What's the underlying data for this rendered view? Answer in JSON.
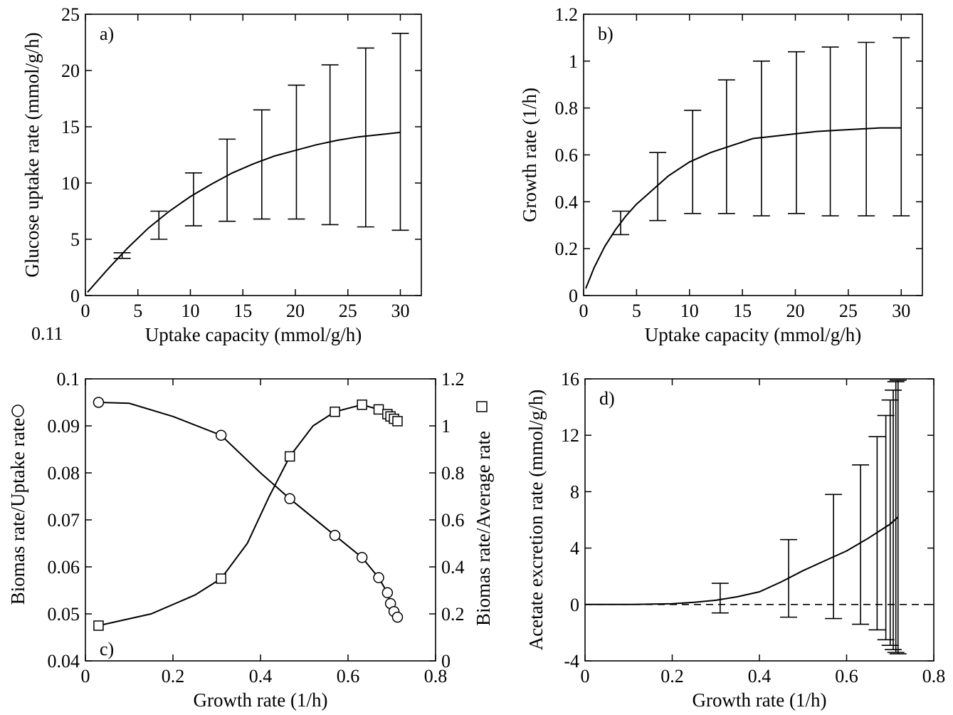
{
  "stray_label": "0.11",
  "chart_data": [
    {
      "id": "a",
      "type": "line",
      "tag": "a)",
      "xlabel": "Uptake capacity (mmol/g/h)",
      "ylabel": "Glucose uptake rate (mmol/g/h)",
      "xlim": [
        0,
        32
      ],
      "ylim": [
        0,
        25
      ],
      "xticks": [
        0,
        5,
        10,
        15,
        20,
        25,
        30
      ],
      "yticks": [
        0,
        5,
        10,
        15,
        20,
        25
      ],
      "xtick_labels": [
        "0",
        "5",
        "10",
        "15",
        "20",
        "25",
        "30"
      ],
      "ytick_labels": [
        "0",
        "5",
        "10",
        "15",
        "20",
        "25"
      ],
      "curve": {
        "x": [
          0.2,
          2,
          4,
          6,
          8,
          10,
          12,
          14,
          16,
          18,
          20,
          22,
          24,
          26,
          28,
          30
        ],
        "y": [
          0.3,
          2.2,
          4.2,
          6.0,
          7.5,
          8.8,
          9.9,
          10.9,
          11.7,
          12.4,
          12.9,
          13.4,
          13.8,
          14.1,
          14.3,
          14.5
        ]
      },
      "errorbars": [
        {
          "x": 3.5,
          "low": 3.3,
          "high": 3.8
        },
        {
          "x": 7,
          "low": 5.0,
          "high": 7.5
        },
        {
          "x": 10.3,
          "low": 6.2,
          "high": 10.9
        },
        {
          "x": 13.5,
          "low": 6.6,
          "high": 13.9
        },
        {
          "x": 16.8,
          "low": 6.8,
          "high": 16.5
        },
        {
          "x": 20.1,
          "low": 6.8,
          "high": 18.7
        },
        {
          "x": 23.3,
          "low": 6.3,
          "high": 20.5
        },
        {
          "x": 26.7,
          "low": 6.1,
          "high": 22.0
        },
        {
          "x": 30,
          "low": 5.8,
          "high": 23.3
        }
      ]
    },
    {
      "id": "b",
      "type": "line",
      "tag": "b)",
      "xlabel": "Uptake capacity (mmol/g/h)",
      "ylabel": "Growth rate (1/h)",
      "xlim": [
        0,
        32
      ],
      "ylim": [
        0,
        1.2
      ],
      "xticks": [
        0,
        5,
        10,
        15,
        20,
        25,
        30
      ],
      "yticks": [
        0,
        0.2,
        0.4,
        0.6,
        0.8,
        1,
        1.2
      ],
      "xtick_labels": [
        "0",
        "5",
        "10",
        "15",
        "20",
        "25",
        "30"
      ],
      "ytick_labels": [
        "0",
        "0.2",
        "0.4",
        "0.6",
        "0.8",
        "1",
        "1.2"
      ],
      "curve": {
        "x": [
          0.2,
          1,
          2,
          3,
          4,
          5,
          6,
          7,
          8,
          10,
          12,
          14,
          16,
          18,
          20,
          22,
          24,
          26,
          28,
          30
        ],
        "y": [
          0.03,
          0.12,
          0.21,
          0.28,
          0.34,
          0.39,
          0.43,
          0.47,
          0.51,
          0.57,
          0.61,
          0.64,
          0.67,
          0.68,
          0.69,
          0.7,
          0.705,
          0.71,
          0.715,
          0.715
        ]
      },
      "errorbars": [
        {
          "x": 3.5,
          "low": 0.26,
          "high": 0.36
        },
        {
          "x": 7,
          "low": 0.32,
          "high": 0.61
        },
        {
          "x": 10.3,
          "low": 0.35,
          "high": 0.79
        },
        {
          "x": 13.5,
          "low": 0.35,
          "high": 0.92
        },
        {
          "x": 16.8,
          "low": 0.34,
          "high": 1.0
        },
        {
          "x": 20.1,
          "low": 0.35,
          "high": 1.04
        },
        {
          "x": 23.3,
          "low": 0.34,
          "high": 1.06
        },
        {
          "x": 26.7,
          "low": 0.34,
          "high": 1.08
        },
        {
          "x": 30,
          "low": 0.34,
          "high": 1.1
        }
      ]
    },
    {
      "id": "c",
      "type": "line",
      "tag": "c)",
      "xlabel": "Growth rate (1/h)",
      "ylabel": "Biomas rate/Uptake rate",
      "ylabel_marker": "circle",
      "y2label": "Biomas rate/Average rate",
      "y2label_marker": "square",
      "xlim": [
        0,
        0.8
      ],
      "ylim": [
        0.04,
        0.1
      ],
      "y2lim": [
        0,
        1.2
      ],
      "xticks": [
        0,
        0.2,
        0.4,
        0.6,
        0.8
      ],
      "yticks": [
        0.04,
        0.05,
        0.06,
        0.07,
        0.08,
        0.09,
        0.1
      ],
      "y2ticks": [
        0,
        0.2,
        0.4,
        0.6,
        0.8,
        1,
        1.2
      ],
      "xtick_labels": [
        "0",
        "0.2",
        "0.4",
        "0.6",
        "0.8"
      ],
      "ytick_labels": [
        "0.04",
        "0.05",
        "0.06",
        "0.07",
        "0.08",
        "0.09",
        "0.1"
      ],
      "y2tick_labels": [
        "0",
        "0.2",
        "0.4",
        "0.6",
        "0.8",
        "1",
        "1.2"
      ],
      "series": [
        {
          "marker": "circle",
          "axis": "left",
          "x": [
            0.03,
            0.1,
            0.2,
            0.31,
            0.4,
            0.467,
            0.57,
            0.632,
            0.67,
            0.69,
            0.697,
            0.705,
            0.713
          ],
          "y": [
            0.095,
            0.0948,
            0.092,
            0.088,
            0.08,
            0.0745,
            0.0667,
            0.062,
            0.0577,
            0.0545,
            0.0522,
            0.0505,
            0.0493
          ],
          "points": [
            {
              "x": 0.03,
              "y": 0.095
            },
            {
              "x": 0.31,
              "y": 0.088
            },
            {
              "x": 0.467,
              "y": 0.0745
            },
            {
              "x": 0.57,
              "y": 0.0667
            },
            {
              "x": 0.632,
              "y": 0.062
            },
            {
              "x": 0.67,
              "y": 0.0577
            },
            {
              "x": 0.69,
              "y": 0.0545
            },
            {
              "x": 0.697,
              "y": 0.0522
            },
            {
              "x": 0.705,
              "y": 0.0505
            },
            {
              "x": 0.713,
              "y": 0.0493
            }
          ]
        },
        {
          "marker": "square",
          "axis": "right",
          "x": [
            0.03,
            0.15,
            0.25,
            0.31,
            0.37,
            0.42,
            0.467,
            0.52,
            0.57,
            0.632,
            0.67,
            0.69,
            0.7,
            0.713
          ],
          "y": [
            0.15,
            0.2,
            0.28,
            0.35,
            0.5,
            0.7,
            0.87,
            1.0,
            1.06,
            1.09,
            1.07,
            1.04,
            1.03,
            1.02
          ],
          "points": [
            {
              "x": 0.03,
              "y": 0.15
            },
            {
              "x": 0.31,
              "y": 0.35
            },
            {
              "x": 0.467,
              "y": 0.87
            },
            {
              "x": 0.57,
              "y": 1.06
            },
            {
              "x": 0.632,
              "y": 1.09
            },
            {
              "x": 0.67,
              "y": 1.07
            },
            {
              "x": 0.69,
              "y": 1.05
            },
            {
              "x": 0.697,
              "y": 1.04
            },
            {
              "x": 0.705,
              "y": 1.03
            },
            {
              "x": 0.713,
              "y": 1.02
            }
          ]
        }
      ]
    },
    {
      "id": "d",
      "type": "line",
      "tag": "d)",
      "xlabel": "Growth rate (1/h)",
      "ylabel": "Acetate excretion rate (mmol/g/h)",
      "xlim": [
        0,
        0.8
      ],
      "ylim": [
        -4,
        16
      ],
      "xticks": [
        0,
        0.2,
        0.4,
        0.6,
        0.8
      ],
      "yticks": [
        -4,
        0,
        4,
        8,
        12,
        16
      ],
      "xtick_labels": [
        "0",
        "0.2",
        "0.4",
        "0.6",
        "0.8"
      ],
      "ytick_labels": [
        "-4",
        "0",
        "4",
        "8",
        "12",
        "16"
      ],
      "reference_line_y": 0,
      "curve": {
        "x": [
          0.0,
          0.1,
          0.2,
          0.25,
          0.3,
          0.35,
          0.4,
          0.45,
          0.5,
          0.55,
          0.6,
          0.65,
          0.7,
          0.718
        ],
        "y": [
          0,
          0,
          0.05,
          0.15,
          0.3,
          0.55,
          0.9,
          1.6,
          2.4,
          3.1,
          3.8,
          4.7,
          5.7,
          6.2
        ]
      },
      "errorbars": [
        {
          "x": 0.31,
          "low": -0.6,
          "high": 1.5
        },
        {
          "x": 0.467,
          "low": -0.9,
          "high": 4.6
        },
        {
          "x": 0.57,
          "low": -1.0,
          "high": 7.8
        },
        {
          "x": 0.632,
          "low": -1.4,
          "high": 9.9
        },
        {
          "x": 0.67,
          "low": -1.8,
          "high": 11.9
        },
        {
          "x": 0.69,
          "low": -2.5,
          "high": 13.4
        },
        {
          "x": 0.7,
          "low": -2.9,
          "high": 14.5
        },
        {
          "x": 0.707,
          "low": -3.2,
          "high": 15.2
        },
        {
          "x": 0.713,
          "low": -3.4,
          "high": 15.8
        },
        {
          "x": 0.718,
          "low": -3.5,
          "high": 15.9
        }
      ]
    }
  ]
}
